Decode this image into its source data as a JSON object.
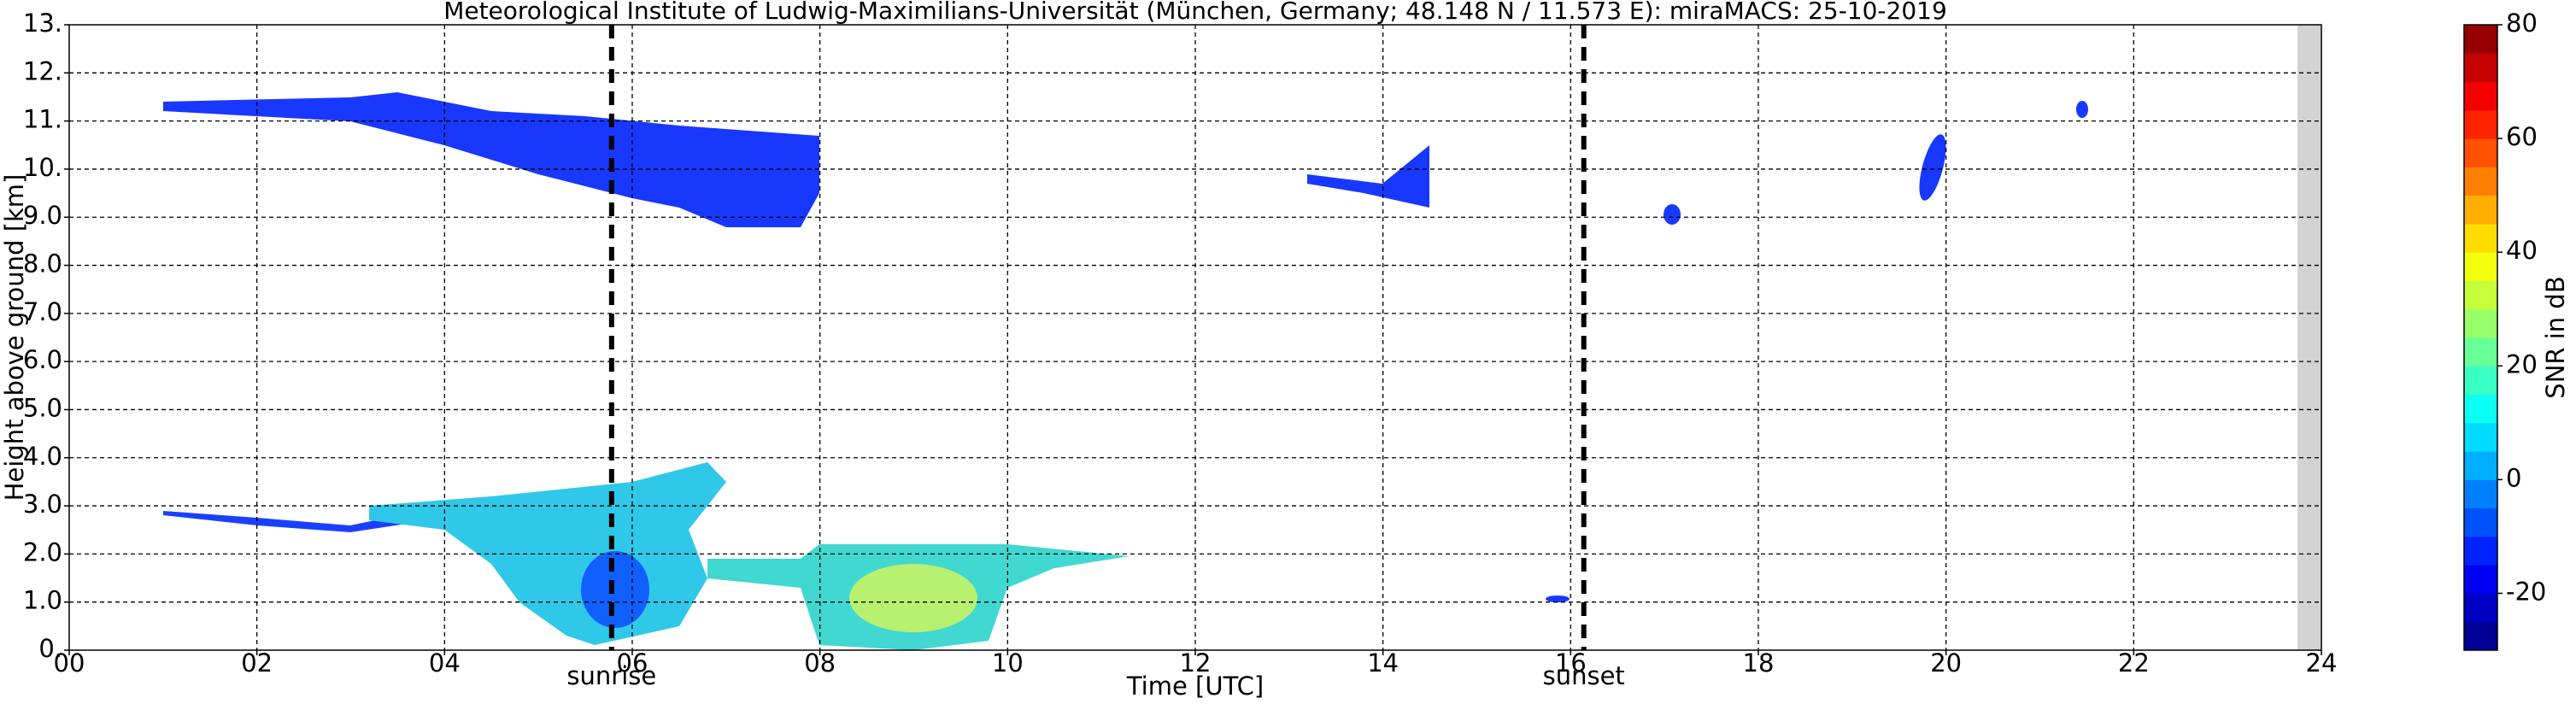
{
  "chart_data": {
    "type": "time-height",
    "title": "Meteorological Institute of Ludwig-Maximilians-Universität (München, Germany; 48.148 N / 11.573 E):    miraMACS: 25-10-2019",
    "xlabel": "Time [UTC]",
    "ylabel": "Height above ground [km]",
    "xlim": [
      0,
      24
    ],
    "xticks": [
      {
        "value": 0,
        "label": "00"
      },
      {
        "value": 2,
        "label": "02"
      },
      {
        "value": 4,
        "label": "04"
      },
      {
        "value": 6,
        "label": "06"
      },
      {
        "value": 8,
        "label": "08"
      },
      10,
      12,
      14,
      16,
      18,
      20,
      22,
      24
    ],
    "ylim": [
      0,
      13
    ],
    "yticks": [
      {
        "value": 0,
        "label": "0."
      },
      {
        "value": 1,
        "label": "1.0"
      },
      {
        "value": 2,
        "label": "2.0"
      },
      {
        "value": 3,
        "label": "3.0"
      },
      {
        "value": 4,
        "label": "4.0"
      },
      {
        "value": 5,
        "label": "5.0"
      },
      {
        "value": 6,
        "label": "6.0"
      },
      {
        "value": 7,
        "label": "7.0"
      },
      {
        "value": 8,
        "label": "8.0"
      },
      {
        "value": 9,
        "label": "9.0"
      },
      {
        "value": 10,
        "label": "10."
      },
      {
        "value": 11,
        "label": "11."
      },
      {
        "value": 12,
        "label": "12."
      },
      {
        "value": 13,
        "label": "13."
      }
    ],
    "grid": true,
    "annotations": [
      {
        "label": "sunrise",
        "x": 5.78
      },
      {
        "label": "sunset",
        "x": 16.14
      }
    ],
    "colorbar": {
      "label": "SNR in dB",
      "colormap": "jet",
      "lim": [
        -30,
        80
      ],
      "ticks": [
        -20,
        0,
        20,
        40,
        60,
        80
      ]
    }
  }
}
